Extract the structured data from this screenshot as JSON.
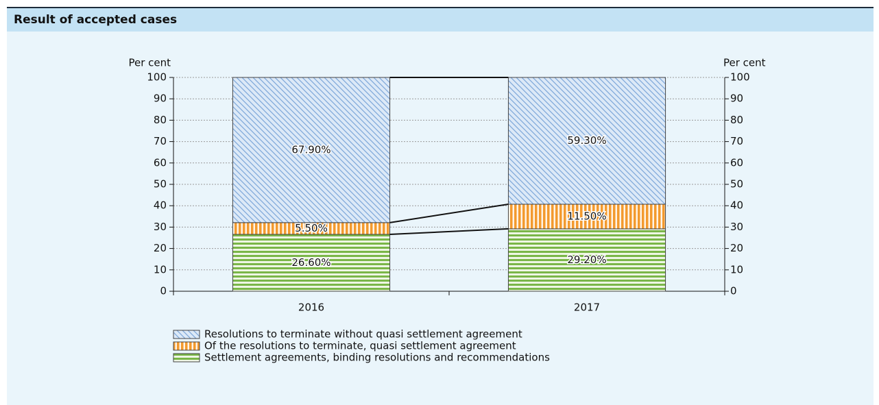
{
  "chart_data": {
    "type": "stacked_bar",
    "title": "Result of accepted cases",
    "y_label": "Per cent",
    "y2_label": "Per cent",
    "categories": [
      "2016",
      "2017"
    ],
    "series": [
      {
        "name": "Settlement agreements, binding resolutions and recommendations",
        "color": "#7ab648",
        "pattern": "horizontal",
        "values": [
          26.6,
          29.2
        ],
        "value_labels": [
          "26.60%",
          "29.20%"
        ]
      },
      {
        "name": "Of the resolutions to terminate, quasi settlement agreement",
        "color": "#f39a2e",
        "pattern": "vertical",
        "values": [
          5.5,
          11.5
        ],
        "value_labels": [
          "5.50%",
          "11.50%"
        ]
      },
      {
        "name": "Resolutions to terminate without quasi settlement agreement",
        "color": "#7da7d9",
        "pattern": "diagonal",
        "values": [
          67.9,
          59.3
        ],
        "value_labels": [
          "67.90%",
          "59.30%"
        ]
      }
    ],
    "ylim": [
      0,
      100
    ],
    "yticks": [
      0,
      10,
      20,
      30,
      40,
      50,
      60,
      70,
      80,
      90,
      100
    ],
    "y2lim": [
      0,
      100
    ],
    "y2ticks": [
      0,
      10,
      20,
      30,
      40,
      50,
      60,
      70,
      80,
      90,
      100
    ],
    "grid": true
  }
}
